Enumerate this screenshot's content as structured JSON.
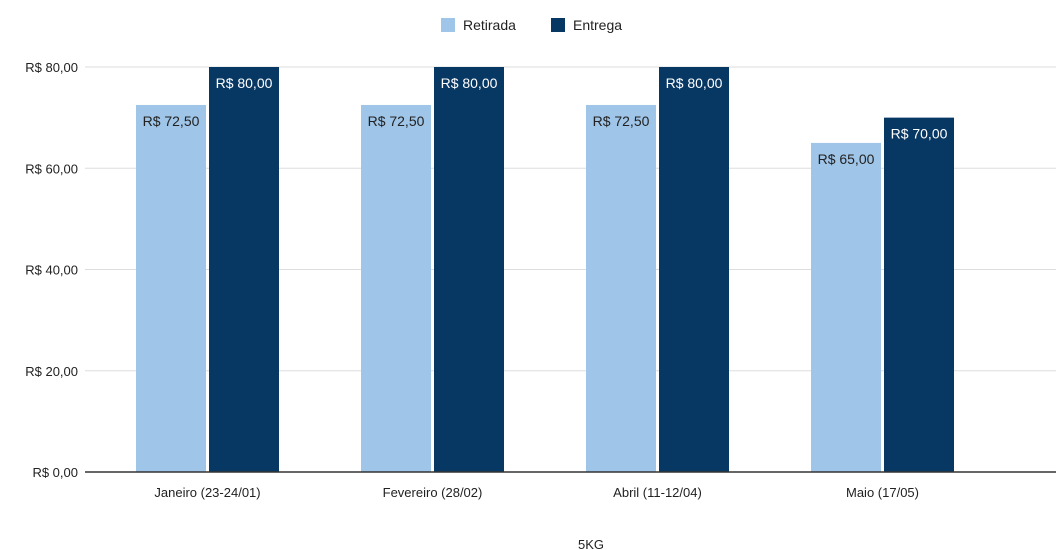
{
  "chart_data": {
    "type": "bar",
    "categories": [
      "Janeiro (23-24/01)",
      "Fevereiro (28/02)",
      "Abril (11-12/04)",
      "Maio (17/05)"
    ],
    "series": [
      {
        "name": "Retirada",
        "values": [
          72.5,
          72.5,
          72.5,
          65
        ],
        "labels": [
          "R$ 72,50",
          "R$ 72,50",
          "R$ 72,50",
          "R$ 65,00"
        ],
        "color": "#9fc5e8"
      },
      {
        "name": "Entrega",
        "values": [
          80,
          80,
          80,
          70
        ],
        "labels": [
          "R$ 80,00",
          "R$ 80,00",
          "R$ 80,00",
          "R$ 70,00"
        ],
        "color": "#073763"
      }
    ],
    "xlabel": "5KG",
    "ylabel": "",
    "ylim": [
      0,
      80
    ],
    "yticks": [
      0,
      20,
      40,
      60,
      80
    ],
    "ytick_labels": [
      "R$ 0,00",
      "R$ 20,00",
      "R$ 40,00",
      "R$ 60,00",
      "R$ 80,00"
    ],
    "grid": true,
    "legend_position": "top-center",
    "gridline_color": "#dddddd",
    "axis_color": "#333333"
  }
}
